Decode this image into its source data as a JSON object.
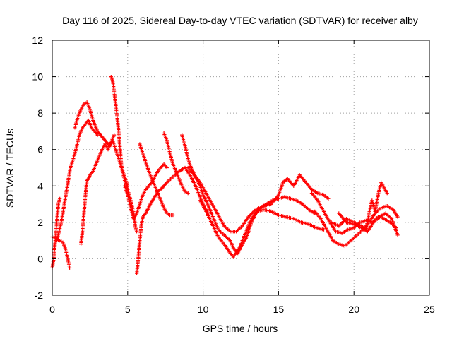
{
  "chart_data": {
    "type": "scatter",
    "title": "Day 116 of 2025, Sidereal Day-to-day VTEC variation (SDTVAR) for receiver alby",
    "xlabel": "GPS time / hours",
    "ylabel": "SDTVAR / TECUs",
    "xlim": [
      0,
      25
    ],
    "ylim": [
      -2,
      12
    ],
    "xticks": [
      0,
      5,
      10,
      15,
      20,
      25
    ],
    "yticks": [
      -2,
      0,
      2,
      4,
      6,
      8,
      10,
      12
    ],
    "grid": true,
    "marker": "+",
    "color": "#ff0000",
    "series": [
      {
        "name": "track-1",
        "points": [
          [
            0.0,
            1.2
          ],
          [
            0.3,
            1.1
          ],
          [
            0.5,
            1.0
          ],
          [
            0.7,
            0.9
          ],
          [
            0.85,
            0.6
          ],
          [
            1.0,
            0.1
          ],
          [
            1.1,
            -0.3
          ],
          [
            1.15,
            -0.5
          ]
        ]
      },
      {
        "name": "track-2",
        "points": [
          [
            0.0,
            -0.5
          ],
          [
            0.1,
            0.0
          ],
          [
            0.2,
            1.0
          ],
          [
            0.3,
            2.0
          ],
          [
            0.4,
            3.0
          ],
          [
            0.5,
            3.3
          ]
        ]
      },
      {
        "name": "track-3",
        "points": [
          [
            0.3,
            1.0
          ],
          [
            0.6,
            2.0
          ],
          [
            0.8,
            3.0
          ],
          [
            1.0,
            4.0
          ],
          [
            1.2,
            5.0
          ],
          [
            1.4,
            5.5
          ],
          [
            1.6,
            6.1
          ],
          [
            1.8,
            6.8
          ],
          [
            2.0,
            7.2
          ],
          [
            2.2,
            7.4
          ],
          [
            2.4,
            7.6
          ],
          [
            2.6,
            7.2
          ],
          [
            2.8,
            7.0
          ],
          [
            3.0,
            6.8
          ]
        ]
      },
      {
        "name": "track-4",
        "points": [
          [
            1.5,
            7.2
          ],
          [
            1.7,
            7.8
          ],
          [
            1.9,
            8.2
          ],
          [
            2.1,
            8.5
          ],
          [
            2.3,
            8.6
          ],
          [
            2.5,
            8.2
          ],
          [
            2.7,
            7.6
          ],
          [
            3.0,
            7.0
          ],
          [
            3.2,
            6.8
          ],
          [
            3.5,
            6.5
          ],
          [
            3.8,
            6.2
          ],
          [
            4.0,
            6.5
          ],
          [
            4.2,
            6.0
          ],
          [
            4.4,
            5.5
          ],
          [
            4.6,
            5.0
          ],
          [
            4.8,
            4.5
          ],
          [
            5.0,
            4.0
          ]
        ]
      },
      {
        "name": "track-5",
        "points": [
          [
            1.9,
            0.8
          ],
          [
            2.0,
            1.5
          ],
          [
            2.1,
            2.5
          ],
          [
            2.2,
            3.5
          ],
          [
            2.3,
            4.3
          ],
          [
            2.4,
            4.4
          ],
          [
            2.5,
            4.6
          ],
          [
            2.7,
            4.8
          ],
          [
            2.9,
            5.2
          ],
          [
            3.1,
            5.6
          ],
          [
            3.3,
            6.0
          ],
          [
            3.5,
            6.3
          ],
          [
            3.7,
            6.0
          ],
          [
            3.9,
            6.4
          ],
          [
            4.1,
            6.8
          ]
        ]
      },
      {
        "name": "track-6",
        "points": [
          [
            3.9,
            10.0
          ],
          [
            4.0,
            9.8
          ],
          [
            4.1,
            9.2
          ],
          [
            4.2,
            8.5
          ],
          [
            4.3,
            7.8
          ],
          [
            4.4,
            7.0
          ],
          [
            4.5,
            6.0
          ],
          [
            4.6,
            5.0
          ],
          [
            4.8,
            4.3
          ],
          [
            5.0,
            3.8
          ],
          [
            5.2,
            3.2
          ],
          [
            5.4,
            2.5
          ],
          [
            5.5,
            1.8
          ],
          [
            5.6,
            1.5
          ]
        ]
      },
      {
        "name": "track-7",
        "points": [
          [
            4.8,
            4.0
          ],
          [
            5.0,
            3.5
          ],
          [
            5.2,
            2.8
          ],
          [
            5.4,
            2.2
          ],
          [
            5.6,
            2.5
          ],
          [
            5.8,
            3.0
          ],
          [
            6.0,
            3.5
          ],
          [
            6.2,
            3.8
          ],
          [
            6.4,
            4.0
          ],
          [
            6.6,
            4.2
          ],
          [
            6.8,
            4.5
          ],
          [
            7.0,
            4.8
          ],
          [
            7.2,
            5.0
          ],
          [
            7.4,
            5.2
          ],
          [
            7.6,
            5.0
          ]
        ]
      },
      {
        "name": "track-8",
        "points": [
          [
            5.6,
            -0.8
          ],
          [
            5.7,
            0.0
          ],
          [
            5.8,
            1.0
          ],
          [
            5.9,
            1.8
          ],
          [
            6.0,
            2.3
          ],
          [
            6.2,
            2.5
          ],
          [
            6.5,
            3.0
          ],
          [
            6.8,
            3.4
          ],
          [
            7.0,
            3.7
          ],
          [
            7.3,
            3.9
          ],
          [
            7.6,
            4.2
          ],
          [
            8.0,
            4.5
          ],
          [
            8.4,
            4.8
          ],
          [
            8.8,
            5.0
          ],
          [
            9.2,
            4.5
          ],
          [
            9.6,
            3.8
          ],
          [
            10.0,
            3.0
          ],
          [
            10.3,
            2.5
          ]
        ]
      },
      {
        "name": "track-9",
        "points": [
          [
            5.8,
            6.3
          ],
          [
            6.0,
            5.8
          ],
          [
            6.2,
            5.3
          ],
          [
            6.4,
            4.8
          ],
          [
            6.6,
            4.4
          ],
          [
            6.8,
            4.0
          ],
          [
            7.0,
            3.6
          ],
          [
            7.2,
            3.2
          ],
          [
            7.4,
            2.8
          ],
          [
            7.6,
            2.5
          ],
          [
            7.8,
            2.4
          ],
          [
            8.0,
            2.4
          ]
        ]
      },
      {
        "name": "track-10",
        "points": [
          [
            7.4,
            6.9
          ],
          [
            7.6,
            6.5
          ],
          [
            7.8,
            5.8
          ],
          [
            8.0,
            5.2
          ],
          [
            8.2,
            4.8
          ],
          [
            8.4,
            4.4
          ],
          [
            8.6,
            4.0
          ],
          [
            8.8,
            3.7
          ],
          [
            9.0,
            3.6
          ]
        ]
      },
      {
        "name": "track-11",
        "points": [
          [
            8.6,
            6.8
          ],
          [
            8.8,
            6.2
          ],
          [
            9.0,
            5.5
          ],
          [
            9.2,
            5.0
          ],
          [
            9.5,
            4.5
          ],
          [
            9.8,
            4.0
          ],
          [
            10.0,
            3.5
          ],
          [
            10.3,
            3.0
          ],
          [
            10.6,
            2.4
          ],
          [
            11.0,
            1.6
          ],
          [
            11.4,
            1.3
          ],
          [
            11.8,
            1.0
          ],
          [
            12.0,
            0.6
          ],
          [
            12.3,
            0.3
          ],
          [
            12.6,
            0.8
          ],
          [
            12.9,
            1.2
          ],
          [
            13.2,
            2.0
          ],
          [
            13.5,
            2.5
          ],
          [
            13.8,
            2.8
          ],
          [
            14.2,
            3.0
          ],
          [
            14.6,
            3.2
          ],
          [
            15.0,
            3.3
          ],
          [
            15.4,
            3.4
          ],
          [
            15.8,
            3.3
          ],
          [
            16.2,
            3.2
          ],
          [
            16.6,
            3.0
          ],
          [
            17.0,
            2.7
          ],
          [
            17.4,
            2.5
          ]
        ]
      },
      {
        "name": "track-12",
        "points": [
          [
            9.0,
            5.0
          ],
          [
            9.4,
            4.6
          ],
          [
            9.8,
            4.2
          ],
          [
            10.2,
            3.6
          ],
          [
            10.6,
            3.0
          ],
          [
            11.0,
            2.4
          ],
          [
            11.4,
            1.8
          ],
          [
            11.8,
            1.5
          ],
          [
            12.2,
            1.5
          ],
          [
            12.6,
            1.8
          ],
          [
            13.0,
            2.3
          ],
          [
            13.5,
            2.7
          ],
          [
            14.0,
            2.9
          ],
          [
            14.5,
            3.0
          ],
          [
            15.0,
            3.5
          ],
          [
            15.3,
            4.2
          ],
          [
            15.6,
            4.4
          ],
          [
            16.0,
            4.0
          ],
          [
            16.4,
            4.6
          ],
          [
            16.8,
            4.2
          ],
          [
            17.2,
            3.8
          ],
          [
            17.6,
            3.6
          ],
          [
            18.0,
            3.5
          ],
          [
            18.3,
            3.3
          ]
        ]
      },
      {
        "name": "track-13",
        "points": [
          [
            9.8,
            3.2
          ],
          [
            10.2,
            2.6
          ],
          [
            10.6,
            1.9
          ],
          [
            11.0,
            1.2
          ],
          [
            11.4,
            0.8
          ],
          [
            11.8,
            0.3
          ],
          [
            12.0,
            0.1
          ],
          [
            12.4,
            0.6
          ],
          [
            12.8,
            1.4
          ],
          [
            13.2,
            2.2
          ],
          [
            13.6,
            2.6
          ],
          [
            14.0,
            2.7
          ],
          [
            14.5,
            2.6
          ],
          [
            15.0,
            2.4
          ],
          [
            15.5,
            2.3
          ],
          [
            16.0,
            2.2
          ],
          [
            16.5,
            2.0
          ],
          [
            17.0,
            1.9
          ],
          [
            17.5,
            1.7
          ],
          [
            18.0,
            1.6
          ]
        ]
      },
      {
        "name": "track-14",
        "points": [
          [
            17.2,
            3.6
          ],
          [
            17.6,
            3.2
          ],
          [
            18.0,
            2.6
          ],
          [
            18.4,
            2.0
          ],
          [
            18.8,
            1.5
          ],
          [
            19.2,
            1.4
          ],
          [
            19.6,
            1.6
          ],
          [
            20.0,
            1.7
          ],
          [
            20.4,
            2.0
          ],
          [
            20.8,
            2.1
          ],
          [
            21.2,
            2.0
          ],
          [
            21.6,
            2.3
          ],
          [
            22.0,
            2.2
          ],
          [
            22.4,
            2.0
          ],
          [
            22.8,
            1.7
          ]
        ]
      },
      {
        "name": "track-15",
        "points": [
          [
            17.4,
            2.6
          ],
          [
            17.8,
            2.2
          ],
          [
            18.2,
            1.6
          ],
          [
            18.6,
            1.0
          ],
          [
            19.0,
            0.8
          ],
          [
            19.4,
            0.7
          ],
          [
            19.8,
            1.0
          ],
          [
            20.2,
            1.3
          ],
          [
            20.6,
            1.6
          ],
          [
            21.0,
            2.0
          ],
          [
            21.4,
            2.5
          ],
          [
            21.8,
            2.8
          ],
          [
            22.2,
            2.9
          ],
          [
            22.6,
            2.7
          ],
          [
            22.9,
            2.3
          ]
        ]
      },
      {
        "name": "track-16",
        "points": [
          [
            18.5,
            2.0
          ],
          [
            19.0,
            1.8
          ],
          [
            19.5,
            2.2
          ],
          [
            20.0,
            2.0
          ],
          [
            20.5,
            1.8
          ],
          [
            20.8,
            1.6
          ],
          [
            21.0,
            2.5
          ],
          [
            21.2,
            3.2
          ],
          [
            21.4,
            2.6
          ],
          [
            21.6,
            3.5
          ],
          [
            21.8,
            4.2
          ],
          [
            22.0,
            3.9
          ],
          [
            22.2,
            3.6
          ]
        ]
      },
      {
        "name": "track-17",
        "points": [
          [
            19.0,
            2.5
          ],
          [
            19.5,
            2.0
          ],
          [
            20.0,
            1.9
          ],
          [
            20.5,
            1.7
          ],
          [
            20.9,
            1.5
          ],
          [
            21.3,
            2.0
          ],
          [
            21.7,
            2.3
          ],
          [
            22.1,
            2.5
          ],
          [
            22.5,
            2.2
          ],
          [
            22.9,
            1.3
          ]
        ]
      }
    ]
  }
}
